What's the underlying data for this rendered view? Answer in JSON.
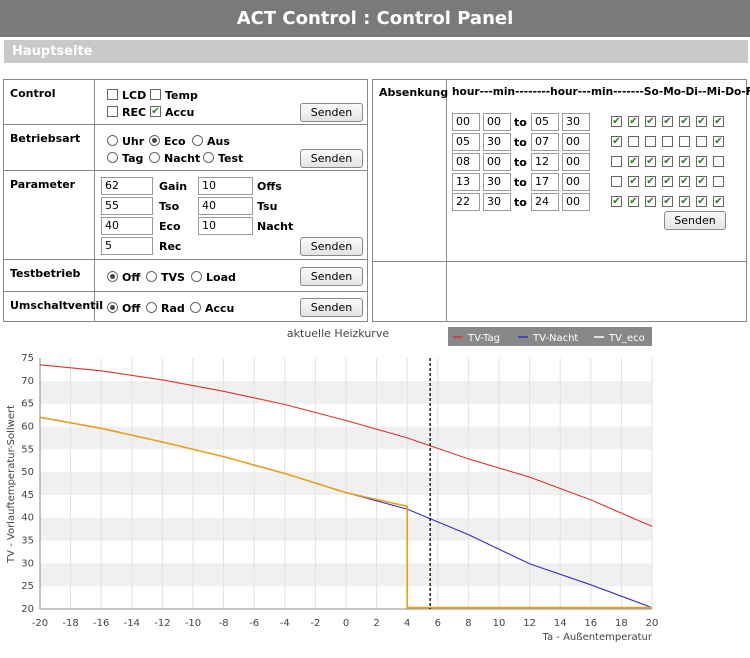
{
  "header": {
    "title": "ACT Control : Control Panel",
    "subtitle": "Hauptseite"
  },
  "send_label": "Senden",
  "control": {
    "label": "Control",
    "options": [
      {
        "label": "LCD",
        "checked": false
      },
      {
        "label": "Temp",
        "checked": false
      },
      {
        "label": "REC",
        "checked": false
      },
      {
        "label": "Accu",
        "checked": true
      }
    ]
  },
  "betriebsart": {
    "label": "Betriebsart",
    "options": [
      {
        "label": "Uhr",
        "selected": false
      },
      {
        "label": "Eco",
        "selected": true
      },
      {
        "label": "Aus",
        "selected": false
      },
      {
        "label": "Tag",
        "selected": false
      },
      {
        "label": "Nacht",
        "selected": false
      },
      {
        "label": "Test",
        "selected": false
      }
    ]
  },
  "parameter": {
    "label": "Parameter",
    "fields": [
      {
        "value": "62",
        "name": "Gain"
      },
      {
        "value": "10",
        "name": "Offs"
      },
      {
        "value": "55",
        "name": "Tso"
      },
      {
        "value": "40",
        "name": "Tsu"
      },
      {
        "value": "40",
        "name": "Eco"
      },
      {
        "value": "10",
        "name": "Nacht"
      },
      {
        "value": "5",
        "name": "Rec"
      }
    ]
  },
  "testbetrieb": {
    "label": "Testbetrieb",
    "options": [
      {
        "label": "Off",
        "selected": true
      },
      {
        "label": "TVS",
        "selected": false
      },
      {
        "label": "Load",
        "selected": false
      }
    ]
  },
  "umschaltventil": {
    "label": "Umschaltventil",
    "options": [
      {
        "label": "Off",
        "selected": true
      },
      {
        "label": "Rad",
        "selected": false
      },
      {
        "label": "Accu",
        "selected": false
      }
    ]
  },
  "absenkung": {
    "label": "Absenkung",
    "header": "hour---min--------hour---min-------So-Mo-Di--Mi-Do-Fr--Sa",
    "to_label": "to",
    "rows": [
      {
        "h1": "00",
        "m1": "00",
        "h2": "05",
        "m2": "30",
        "days": [
          true,
          true,
          true,
          true,
          true,
          true,
          true
        ]
      },
      {
        "h1": "05",
        "m1": "30",
        "h2": "07",
        "m2": "00",
        "days": [
          true,
          false,
          false,
          false,
          false,
          false,
          true
        ]
      },
      {
        "h1": "08",
        "m1": "00",
        "h2": "12",
        "m2": "00",
        "days": [
          false,
          true,
          true,
          true,
          true,
          true,
          false
        ]
      },
      {
        "h1": "13",
        "m1": "30",
        "h2": "17",
        "m2": "00",
        "days": [
          false,
          true,
          true,
          true,
          true,
          true,
          false
        ]
      },
      {
        "h1": "22",
        "m1": "30",
        "h2": "24",
        "m2": "00",
        "days": [
          true,
          true,
          true,
          true,
          true,
          true,
          true
        ]
      }
    ]
  },
  "chart_data": {
    "type": "line",
    "title": "aktuelle Heizkurve",
    "xlabel": "Ta - Außentemperatur",
    "ylabel": "TV - Vorlauftemperatur-Sollwert",
    "xlim": [
      -20,
      20
    ],
    "ylim": [
      20,
      75
    ],
    "xticks": [
      -20,
      -18,
      -16,
      -14,
      -12,
      -10,
      -8,
      -6,
      -4,
      -2,
      0,
      2,
      4,
      6,
      8,
      10,
      12,
      14,
      16,
      18,
      20
    ],
    "yticks": [
      20,
      25,
      30,
      35,
      40,
      45,
      50,
      55,
      60,
      65,
      70,
      75
    ],
    "legend_position": "top-right",
    "marker_x": 5.5,
    "series": [
      {
        "name": "TV-Tag",
        "color": "#e03030",
        "x": [
          -20,
          -16,
          -12,
          -8,
          -4,
          0,
          4,
          8,
          12,
          16,
          20
        ],
        "y": [
          73.5,
          72.2,
          70.2,
          67.7,
          64.8,
          61.3,
          57.5,
          52.9,
          48.9,
          43.9,
          38.1
        ]
      },
      {
        "name": "TV-Nacht",
        "color": "#3030c8",
        "x": [
          -20,
          -16,
          -12,
          -8,
          -4,
          0,
          4,
          8,
          12,
          16,
          20
        ],
        "y": [
          62.0,
          59.6,
          56.6,
          53.4,
          49.7,
          45.5,
          41.9,
          36.3,
          29.9,
          25.3,
          20.3
        ]
      },
      {
        "name": "TV_eco",
        "color": "#e8a020",
        "x": [
          -20,
          -16,
          -12,
          -8,
          -4,
          0,
          4,
          4,
          8,
          12,
          16,
          20
        ],
        "y": [
          62.0,
          59.6,
          56.6,
          53.4,
          49.7,
          45.5,
          42.5,
          20.3,
          20.3,
          20.3,
          20.3,
          20.3
        ]
      }
    ]
  }
}
